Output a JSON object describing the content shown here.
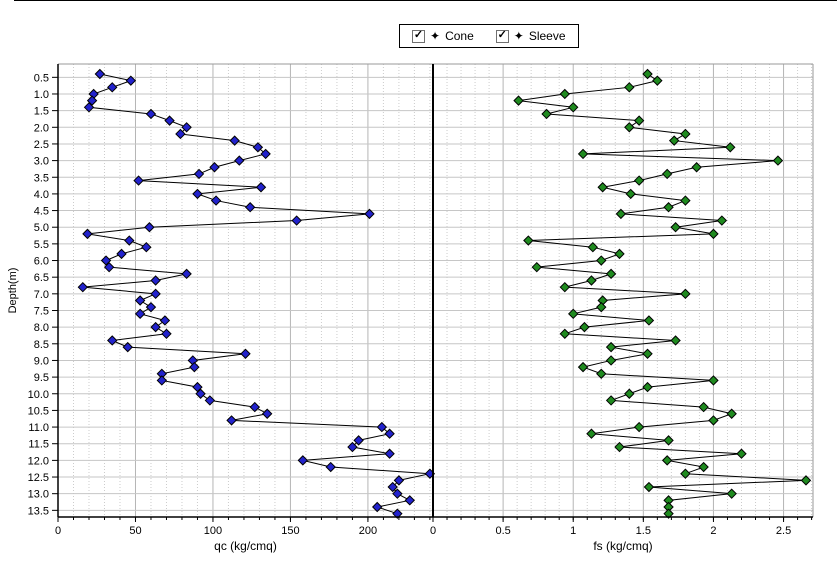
{
  "legend": {
    "marker_glyph": "✦",
    "items": [
      {
        "label": "Cone",
        "checked": true
      },
      {
        "label": "Sleeve",
        "checked": true
      }
    ]
  },
  "depth_axis": {
    "label": "Depth(m)",
    "range": [
      0.1,
      13.7
    ],
    "decimals": 1,
    "ticks": [
      0.5,
      1.0,
      1.5,
      2.0,
      2.5,
      3.0,
      3.5,
      4.0,
      4.5,
      5.0,
      5.5,
      6.0,
      6.5,
      7.0,
      7.5,
      8.0,
      8.5,
      9.0,
      9.5,
      10.0,
      10.5,
      11.0,
      11.5,
      12.0,
      12.5,
      13.0,
      13.5
    ]
  },
  "chart_data": [
    {
      "type": "line",
      "series_name": "Cone",
      "xlabel": "qc (kg/cmq)",
      "ylabel": "Depth(m)",
      "xlim": [
        0,
        242
      ],
      "x_major_ticks": [
        {
          "v": 0,
          "label": "0"
        },
        {
          "v": 50,
          "label": "50"
        },
        {
          "v": 100,
          "label": "100"
        },
        {
          "v": 150,
          "label": "150"
        },
        {
          "v": 200,
          "label": "200"
        }
      ],
      "x_minor_step": 10,
      "marker": "diamond",
      "marker_color": "#2222cc",
      "line_color": "#000000",
      "depths": [
        0.4,
        0.6,
        0.8,
        1.0,
        1.2,
        1.4,
        1.6,
        1.8,
        2.0,
        2.2,
        2.4,
        2.6,
        2.8,
        3.0,
        3.2,
        3.4,
        3.6,
        3.8,
        4.0,
        4.2,
        4.4,
        4.6,
        4.8,
        5.0,
        5.2,
        5.4,
        5.6,
        5.8,
        6.0,
        6.2,
        6.4,
        6.6,
        6.8,
        7.0,
        7.2,
        7.4,
        7.6,
        7.8,
        8.0,
        8.2,
        8.4,
        8.6,
        8.8,
        9.0,
        9.2,
        9.4,
        9.6,
        9.8,
        10.0,
        10.2,
        10.4,
        10.6,
        10.8,
        11.0,
        11.2,
        11.4,
        11.6,
        11.8,
        12.0,
        12.2,
        12.4,
        12.6,
        12.8,
        13.0,
        13.2,
        13.4,
        13.6
      ],
      "values": [
        27,
        47,
        35,
        23,
        22,
        20,
        60,
        72,
        83,
        79,
        114,
        129,
        134,
        117,
        101,
        91,
        52,
        131,
        90,
        102,
        124,
        201,
        154,
        59,
        19,
        46,
        57,
        41,
        31,
        33,
        83,
        63,
        16,
        63,
        53,
        60,
        53,
        69,
        63,
        70,
        35,
        45,
        121,
        87,
        88,
        67,
        67,
        90,
        92,
        98,
        127,
        135,
        112,
        209,
        214,
        194,
        190,
        214,
        158,
        176,
        240,
        220,
        216,
        219,
        227,
        206,
        219
      ]
    },
    {
      "type": "line",
      "series_name": "Sleeve",
      "xlabel": "fs (kg/cmq)",
      "ylabel": "Depth(m)",
      "xlim": [
        0,
        2.71
      ],
      "x_major_ticks": [
        {
          "v": 0,
          "label": "0"
        },
        {
          "v": 0.5,
          "label": "0.5"
        },
        {
          "v": 1,
          "label": "1"
        },
        {
          "v": 1.5,
          "label": "1.5"
        },
        {
          "v": 2,
          "label": "2"
        },
        {
          "v": 2.5,
          "label": "2.5"
        }
      ],
      "x_minor_step": 0.1,
      "marker": "diamond",
      "marker_color": "#1f8a1f",
      "line_color": "#000000",
      "depths": [
        0.4,
        0.6,
        0.8,
        1.0,
        1.2,
        1.4,
        1.6,
        1.8,
        2.0,
        2.2,
        2.4,
        2.6,
        2.8,
        3.0,
        3.2,
        3.4,
        3.6,
        3.8,
        4.0,
        4.2,
        4.4,
        4.6,
        4.8,
        5.0,
        5.2,
        5.4,
        5.6,
        5.8,
        6.0,
        6.2,
        6.4,
        6.6,
        6.8,
        7.0,
        7.2,
        7.4,
        7.6,
        7.8,
        8.0,
        8.2,
        8.4,
        8.6,
        8.8,
        9.0,
        9.2,
        9.4,
        9.6,
        9.8,
        10.0,
        10.2,
        10.4,
        10.6,
        10.8,
        11.0,
        11.2,
        11.4,
        11.6,
        11.8,
        12.0,
        12.2,
        12.4,
        12.6,
        12.8,
        13.0,
        13.2,
        13.4,
        13.6
      ],
      "values": [
        1.53,
        1.6,
        1.4,
        0.94,
        0.61,
        1.0,
        0.81,
        1.47,
        1.4,
        1.8,
        1.72,
        2.12,
        1.07,
        2.46,
        1.88,
        1.67,
        1.47,
        1.21,
        1.41,
        1.8,
        1.68,
        1.34,
        2.06,
        1.73,
        2.0,
        0.68,
        1.14,
        1.33,
        1.2,
        0.74,
        1.27,
        1.13,
        0.94,
        1.8,
        1.21,
        1.2,
        1.0,
        1.54,
        1.08,
        0.94,
        1.73,
        1.27,
        1.53,
        1.27,
        1.07,
        1.2,
        2.0,
        1.53,
        1.4,
        1.27,
        1.93,
        2.13,
        2.0,
        1.47,
        1.13,
        1.68,
        1.33,
        2.2,
        1.67,
        1.93,
        1.8,
        2.66,
        1.54,
        2.13,
        1.68,
        1.68,
        1.68
      ]
    }
  ]
}
